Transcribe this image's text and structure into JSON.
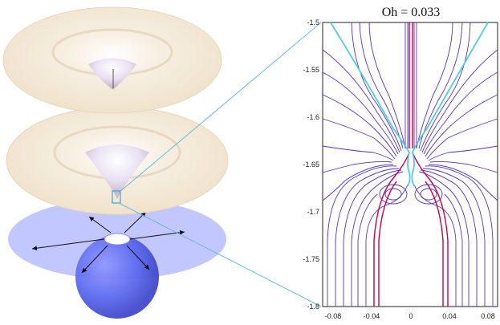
{
  "plot": {
    "title": "Oh = 0.033",
    "xlim": [
      -0.09,
      0.09
    ],
    "ylim": [
      -1.8,
      -1.5
    ],
    "x_ticks": [
      "-0.08",
      "-0.04",
      "0",
      "0.04",
      "0.08"
    ],
    "y_ticks": [
      "-1.5",
      "-1.55",
      "-1.6",
      "-1.65",
      "-1.7",
      "-1.75",
      "-1.8"
    ]
  },
  "colors": {
    "surface": "#f2e6d2",
    "bubble_disk": "#aab4ff",
    "bubble": "#5560ee",
    "streamline": "#5533cc",
    "streamline_main": "#cc0044",
    "interface": "#55ccdd",
    "zoom_line": "#66b8e0"
  }
}
